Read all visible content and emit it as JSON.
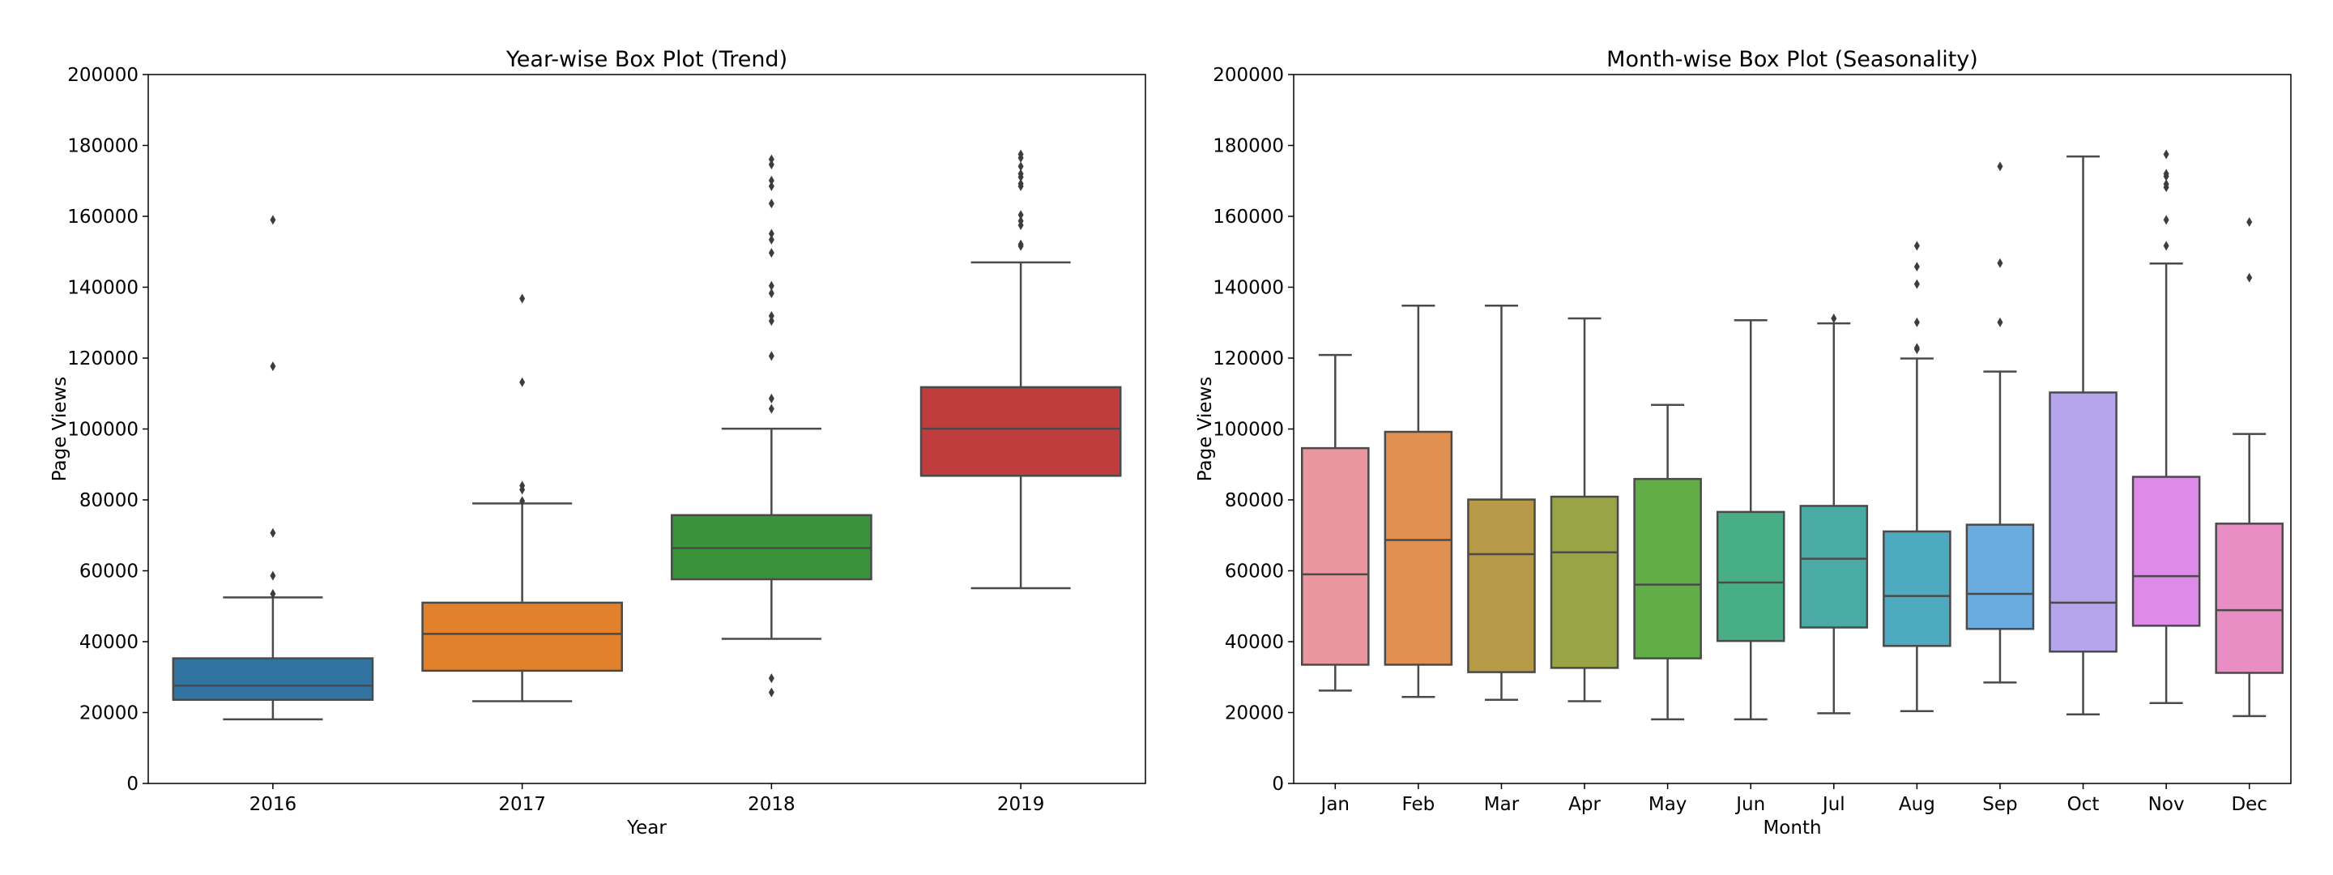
{
  "chart_data": [
    {
      "type": "box",
      "title": "Year-wise Box Plot (Trend)",
      "xlabel": "Year",
      "ylabel": "Page Views",
      "ylim": [
        0,
        200000
      ],
      "yticks": [
        "0",
        "20000",
        "40000",
        "60000",
        "80000",
        "100000",
        "120000",
        "140000",
        "160000",
        "180000",
        "200000"
      ],
      "categories": [
        "2016",
        "2017",
        "2018",
        "2019"
      ],
      "colors": [
        "#3274a1",
        "#e1812c",
        "#3a923a",
        "#c03d3e"
      ],
      "boxes": [
        {
          "low": 18100,
          "q1": 23600,
          "median": 27600,
          "q3": 35300,
          "high": 52500,
          "outliers": [
            53500,
            58600,
            70700,
            117700,
            159000
          ]
        },
        {
          "low": 23200,
          "q1": 31800,
          "median": 42200,
          "q3": 51000,
          "high": 79000,
          "outliers": [
            79700,
            82900,
            84000,
            113200,
            136800
          ]
        },
        {
          "low": 40800,
          "q1": 57600,
          "median": 66400,
          "q3": 75700,
          "high": 100100,
          "outliers": [
            25700,
            29700,
            105700,
            108600,
            120600,
            130500,
            131900,
            138300,
            140400,
            149700,
            153400,
            155100,
            163600,
            168500,
            170100,
            174600,
            176100
          ]
        },
        {
          "low": 55100,
          "q1": 86800,
          "median": 100100,
          "q3": 111800,
          "high": 147000,
          "outliers": [
            151600,
            152100,
            157500,
            158700,
            160400,
            168500,
            169200,
            171100,
            172000,
            174100,
            176500,
            177500
          ]
        }
      ]
    },
    {
      "type": "box",
      "title": "Month-wise Box Plot (Seasonality)",
      "xlabel": "Month",
      "ylabel": "Page Views",
      "ylim": [
        0,
        200000
      ],
      "yticks": [
        "0",
        "20000",
        "40000",
        "60000",
        "80000",
        "100000",
        "120000",
        "140000",
        "160000",
        "180000",
        "200000"
      ],
      "categories": [
        "Jan",
        "Feb",
        "Mar",
        "Apr",
        "May",
        "Jun",
        "Jul",
        "Aug",
        "Sep",
        "Oct",
        "Nov",
        "Dec"
      ],
      "colors": [
        "#e9969f",
        "#e09152",
        "#b69a47",
        "#99a446",
        "#61ae47",
        "#48ae86",
        "#4aaaa4",
        "#4eaabe",
        "#6aabe0",
        "#b6a5ea",
        "#de8ae8",
        "#e88ec4"
      ],
      "boxes": [
        {
          "low": 26200,
          "q1": 33500,
          "median": 59000,
          "q3": 94600,
          "high": 120900,
          "outliers": []
        },
        {
          "low": 24400,
          "q1": 33500,
          "median": 68700,
          "q3": 99200,
          "high": 134800,
          "outliers": []
        },
        {
          "low": 23600,
          "q1": 31400,
          "median": 64700,
          "q3": 80100,
          "high": 134800,
          "outliers": []
        },
        {
          "low": 23200,
          "q1": 32600,
          "median": 65200,
          "q3": 80900,
          "high": 131200,
          "outliers": []
        },
        {
          "low": 18100,
          "q1": 35300,
          "median": 56100,
          "q3": 85900,
          "high": 106800,
          "outliers": []
        },
        {
          "low": 18100,
          "q1": 40200,
          "median": 56700,
          "q3": 76600,
          "high": 130700,
          "outliers": []
        },
        {
          "low": 19800,
          "q1": 44000,
          "median": 63400,
          "q3": 78300,
          "high": 129800,
          "outliers": [
            131200
          ]
        },
        {
          "low": 20400,
          "q1": 38800,
          "median": 52900,
          "q3": 71100,
          "high": 119900,
          "outliers": [
            122500,
            122900,
            130100,
            140900,
            145800,
            151700
          ]
        },
        {
          "low": 28500,
          "q1": 43600,
          "median": 53500,
          "q3": 73000,
          "high": 116200,
          "outliers": [
            130100,
            146800,
            174100
          ]
        },
        {
          "low": 19500,
          "q1": 37200,
          "median": 51000,
          "q3": 110300,
          "high": 176900,
          "outliers": []
        },
        {
          "low": 22700,
          "q1": 44500,
          "median": 58500,
          "q3": 86500,
          "high": 146700,
          "outliers": [
            151700,
            159000,
            168200,
            169100,
            171300,
            172000,
            177500
          ]
        },
        {
          "low": 19000,
          "q1": 31200,
          "median": 48900,
          "q3": 73300,
          "high": 98600,
          "outliers": [
            142700,
            158400
          ]
        }
      ]
    }
  ]
}
